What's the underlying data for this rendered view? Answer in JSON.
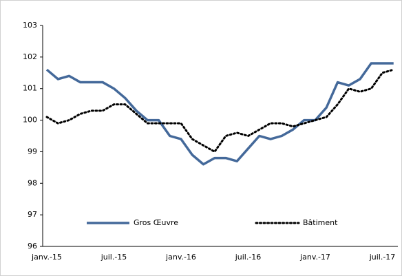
{
  "chart_data": {
    "type": "line",
    "categories": [
      "janv.-15",
      null,
      null,
      null,
      null,
      null,
      "juil.-15",
      null,
      null,
      null,
      null,
      null,
      "janv.-16",
      null,
      null,
      null,
      null,
      null,
      "juil.-16",
      null,
      null,
      null,
      null,
      null,
      "janv.-17",
      null,
      null,
      null,
      null,
      null,
      "juil.-17",
      null
    ],
    "series": [
      {
        "name": "Gros Œuvre",
        "color": "#44699a",
        "style": "solid",
        "values": [
          101.6,
          101.3,
          101.4,
          101.2,
          101.2,
          101.2,
          101.0,
          100.7,
          100.3,
          100.0,
          100.0,
          99.5,
          99.4,
          98.9,
          98.6,
          98.8,
          98.8,
          98.7,
          99.1,
          99.5,
          99.4,
          99.5,
          99.7,
          100.0,
          100.0,
          100.4,
          101.2,
          101.1,
          101.3,
          101.8,
          101.8,
          101.8
        ]
      },
      {
        "name": "Bâtiment",
        "color": "#000000",
        "style": "dotted",
        "values": [
          100.1,
          99.9,
          100.0,
          100.2,
          100.3,
          100.3,
          100.5,
          100.5,
          100.2,
          99.9,
          99.9,
          99.9,
          99.9,
          99.4,
          99.2,
          99.0,
          99.5,
          99.6,
          99.5,
          99.7,
          99.9,
          99.9,
          99.8,
          99.9,
          100.0,
          100.1,
          100.5,
          101.0,
          100.9,
          101.0,
          101.5,
          101.6
        ]
      }
    ],
    "ylim": [
      96,
      103
    ],
    "yticks": [
      96,
      97,
      98,
      99,
      100,
      101,
      102,
      103
    ],
    "grid": false,
    "legend": "bottom"
  }
}
